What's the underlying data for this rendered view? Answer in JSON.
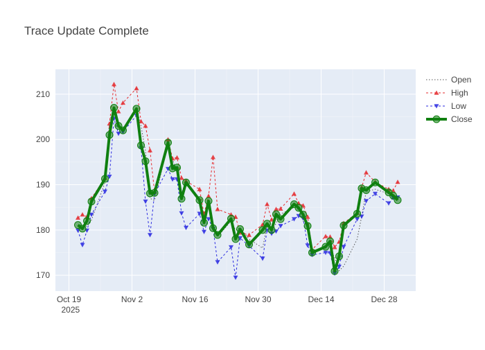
{
  "chart_data": {
    "type": "line",
    "title": "Trace Update Complete",
    "xlabel": "",
    "ylabel": "",
    "x_ticks": [
      {
        "date": "2025-10-19",
        "label": "Oct 19",
        "sublabel": "2025"
      },
      {
        "date": "2025-11-02",
        "label": "Nov 2"
      },
      {
        "date": "2025-11-16",
        "label": "Nov 16"
      },
      {
        "date": "2025-11-30",
        "label": "Nov 30"
      },
      {
        "date": "2025-12-14",
        "label": "Dec 14"
      },
      {
        "date": "2025-12-28",
        "label": "Dec 28"
      }
    ],
    "y_ticks": [
      170,
      180,
      190,
      200,
      210
    ],
    "xlim": [
      "2025-10-16",
      "2026-01-04"
    ],
    "ylim": [
      166.5,
      215.5
    ],
    "grid": true,
    "legend_position": "top-right",
    "dates": [
      "2025-10-21",
      "2025-10-22",
      "2025-10-23",
      "2025-10-24",
      "2025-10-27",
      "2025-10-28",
      "2025-10-29",
      "2025-10-30",
      "2025-10-31",
      "2025-11-03",
      "2025-11-04",
      "2025-11-05",
      "2025-11-06",
      "2025-11-07",
      "2025-11-10",
      "2025-11-11",
      "2025-11-12",
      "2025-11-13",
      "2025-11-14",
      "2025-11-17",
      "2025-11-18",
      "2025-11-19",
      "2025-11-20",
      "2025-11-21",
      "2025-11-24",
      "2025-11-25",
      "2025-11-26",
      "2025-11-28",
      "2025-12-01",
      "2025-12-02",
      "2025-12-03",
      "2025-12-04",
      "2025-12-05",
      "2025-12-08",
      "2025-12-09",
      "2025-12-10",
      "2025-12-11",
      "2025-12-12",
      "2025-12-15",
      "2025-12-16",
      "2025-12-17",
      "2025-12-18",
      "2025-12-19",
      "2025-12-22",
      "2025-12-23",
      "2025-12-24",
      "2025-12-26",
      "2025-12-29",
      "2025-12-30",
      "2025-12-31"
    ],
    "series": [
      {
        "name": "Open",
        "color": "#555555",
        "style": "dotted",
        "marker": "none",
        "values": [
          181.0,
          181.2,
          180.8,
          182.2,
          190.5,
          204.0,
          206.8,
          202.0,
          201.5,
          207.0,
          203.0,
          197.5,
          187.0,
          186.5,
          199.0,
          195.5,
          193.0,
          188.0,
          191.0,
          186.0,
          183.0,
          185.0,
          181.5,
          178.5,
          182.0,
          180.0,
          180.5,
          178.0,
          176.0,
          181.0,
          179.5,
          181.5,
          183.5,
          185.0,
          184.5,
          182.0,
          180.5,
          175.5,
          176.0,
          175.5,
          174.0,
          171.0,
          172.0,
          178.0,
          183.0,
          188.5,
          189.0,
          188.0,
          187.0,
          187.5
        ]
      },
      {
        "name": "High",
        "color": "#e5282b",
        "style": "dashed",
        "marker": "triangle-up",
        "values": [
          182.7,
          183.4,
          182.9,
          187.0,
          191.5,
          203.5,
          212.2,
          206.2,
          208.1,
          211.3,
          204.0,
          203.0,
          197.6,
          188.5,
          200.0,
          195.8,
          196.0,
          191.5,
          190.8,
          189.0,
          183.5,
          187.5,
          196.1,
          184.6,
          183.4,
          182.9,
          179.4,
          178.9,
          181.2,
          185.7,
          182.3,
          184.6,
          184.7,
          188.0,
          185.9,
          185.4,
          182.9,
          175.7,
          178.6,
          178.5,
          176.2,
          177.4,
          181.5,
          183.8,
          189.4,
          192.7,
          190.6,
          189.0,
          188.7,
          190.6
        ]
      },
      {
        "name": "Low",
        "color": "#2a2ae0",
        "style": "dashed",
        "marker": "triangle-down",
        "values": [
          179.9,
          176.7,
          179.9,
          183.4,
          188.5,
          191.8,
          204.6,
          201.3,
          201.7,
          205.3,
          198.1,
          186.3,
          178.9,
          188.0,
          193.5,
          191.2,
          191.2,
          183.7,
          180.5,
          183.6,
          179.6,
          182.4,
          180.3,
          172.9,
          176.2,
          169.5,
          178.2,
          176.5,
          173.7,
          179.9,
          179.2,
          179.7,
          180.9,
          182.4,
          183.1,
          182.6,
          176.6,
          174.5,
          175.0,
          174.9,
          170.4,
          171.9,
          176.3,
          182.4,
          183.0,
          186.4,
          188.0,
          185.9,
          187.1,
          187.2
        ]
      },
      {
        "name": "Close",
        "color": "#108010",
        "style": "solid",
        "marker": "circle",
        "values": [
          181.1,
          180.3,
          182.0,
          186.3,
          191.3,
          201.0,
          207.0,
          203.0,
          202.0,
          206.8,
          198.7,
          195.2,
          188.1,
          188.2,
          199.3,
          193.6,
          193.8,
          186.9,
          190.5,
          186.6,
          181.6,
          186.4,
          180.4,
          178.9,
          182.5,
          178.0,
          180.2,
          176.8,
          180.0,
          181.4,
          180.0,
          183.5,
          182.4,
          185.7,
          184.9,
          183.4,
          180.9,
          175.0,
          176.3,
          177.5,
          170.9,
          174.2,
          181.0,
          183.6,
          189.2,
          188.8,
          190.5,
          188.3,
          187.6,
          186.6
        ]
      }
    ]
  }
}
